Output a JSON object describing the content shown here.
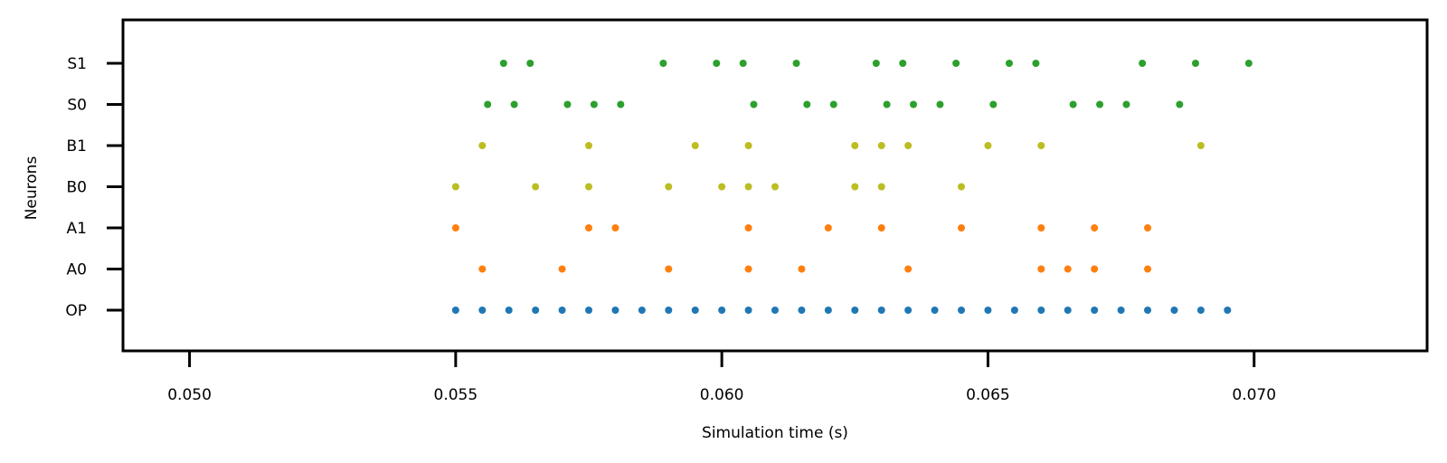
{
  "chart_data": {
    "type": "scatter",
    "title": "",
    "xlabel": "Simulation time (s)",
    "ylabel": "Neurons",
    "xlim": [
      0.04875,
      0.07325
    ],
    "x_ticks": [
      "0.050",
      "0.055",
      "0.060",
      "0.065",
      "0.070"
    ],
    "x_tick_values": [
      0.05,
      0.055,
      0.06,
      0.065,
      0.07
    ],
    "categories": [
      "OP",
      "A0",
      "A1",
      "B0",
      "B1",
      "S0",
      "S1"
    ],
    "grid": false,
    "legend": "none",
    "series": [
      {
        "category": "OP",
        "color": "#1f77b4",
        "x": [
          0.055,
          0.0555,
          0.056,
          0.0565,
          0.057,
          0.0575,
          0.058,
          0.0585,
          0.059,
          0.0595,
          0.06,
          0.0605,
          0.061,
          0.0615,
          0.062,
          0.0625,
          0.063,
          0.0635,
          0.064,
          0.0645,
          0.065,
          0.0655,
          0.066,
          0.0665,
          0.067,
          0.0675,
          0.068,
          0.0685,
          0.069,
          0.0695
        ]
      },
      {
        "category": "A0",
        "color": "#ff7f0e",
        "x": [
          0.0555,
          0.057,
          0.059,
          0.0605,
          0.0615,
          0.0635,
          0.066,
          0.0665,
          0.067,
          0.068
        ]
      },
      {
        "category": "A1",
        "color": "#ff7f0e",
        "x": [
          0.055,
          0.0575,
          0.058,
          0.0605,
          0.062,
          0.063,
          0.0645,
          0.066,
          0.067,
          0.068
        ]
      },
      {
        "category": "B0",
        "color": "#bcbd22",
        "x": [
          0.055,
          0.0565,
          0.0575,
          0.059,
          0.06,
          0.0605,
          0.061,
          0.0625,
          0.063,
          0.0645
        ]
      },
      {
        "category": "B1",
        "color": "#bcbd22",
        "x": [
          0.0555,
          0.0575,
          0.0595,
          0.0605,
          0.0625,
          0.063,
          0.0635,
          0.065,
          0.066,
          0.069
        ]
      },
      {
        "category": "S0",
        "color": "#2ca02c",
        "x": [
          0.0556,
          0.0561,
          0.0571,
          0.0576,
          0.0581,
          0.0606,
          0.0616,
          0.0621,
          0.0631,
          0.0636,
          0.0641,
          0.0651,
          0.0666,
          0.0671,
          0.0676,
          0.0686
        ]
      },
      {
        "category": "S1",
        "color": "#2ca02c",
        "x": [
          0.0559,
          0.0564,
          0.0589,
          0.0599,
          0.0604,
          0.0614,
          0.0629,
          0.0634,
          0.0644,
          0.0654,
          0.0659,
          0.0679,
          0.0689,
          0.0699
        ]
      }
    ]
  }
}
